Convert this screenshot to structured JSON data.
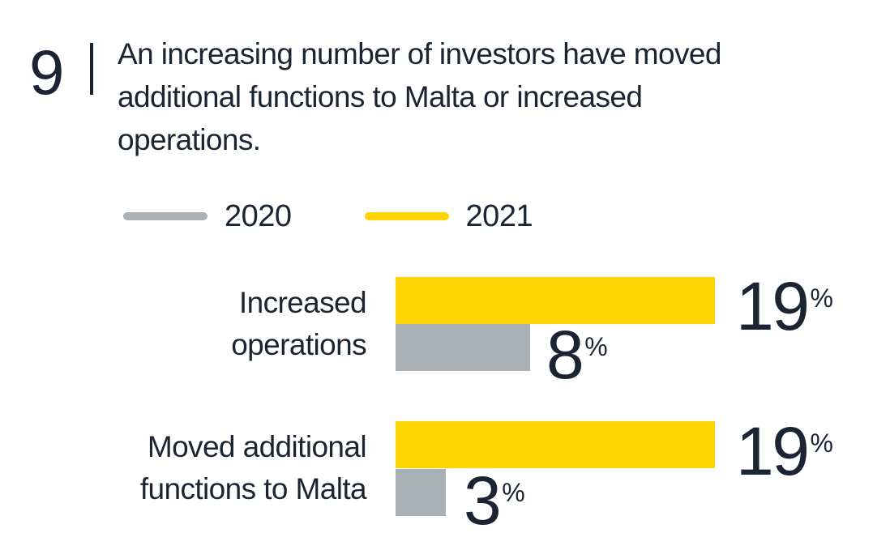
{
  "colors": {
    "background": "#ffffff",
    "text": "#1a2433",
    "yellow_2021": "#ffd402",
    "gray_2020": "#a9b0b6"
  },
  "header": {
    "figure_number": "9",
    "title_lines": [
      "An increasing number of investors have moved",
      "additional functions to Malta or increased",
      "operations."
    ]
  },
  "legend": {
    "items": [
      {
        "label": "2020",
        "color": "#a9b0b6"
      },
      {
        "label": "2021",
        "color": "#ffd402"
      }
    ]
  },
  "chart_data": {
    "type": "bar",
    "orientation": "horizontal",
    "title": "An increasing number of investors have moved additional functions to Malta or increased operations.",
    "figure_number": "9",
    "categories": [
      "Increased operations",
      "Moved additional functions to Malta"
    ],
    "category_lines": [
      [
        "Increased",
        "operations"
      ],
      [
        "Moved additional",
        "functions to Malta"
      ]
    ],
    "series": [
      {
        "name": "2021",
        "color": "#ffd402",
        "values": [
          19,
          19
        ]
      },
      {
        "name": "2020",
        "color": "#a9b0b6",
        "values": [
          8,
          3
        ]
      }
    ],
    "value_suffix": "%",
    "xlim": [
      0,
      19
    ],
    "grid": false,
    "legend_position": "top-left",
    "value_labels": "outside-end"
  }
}
